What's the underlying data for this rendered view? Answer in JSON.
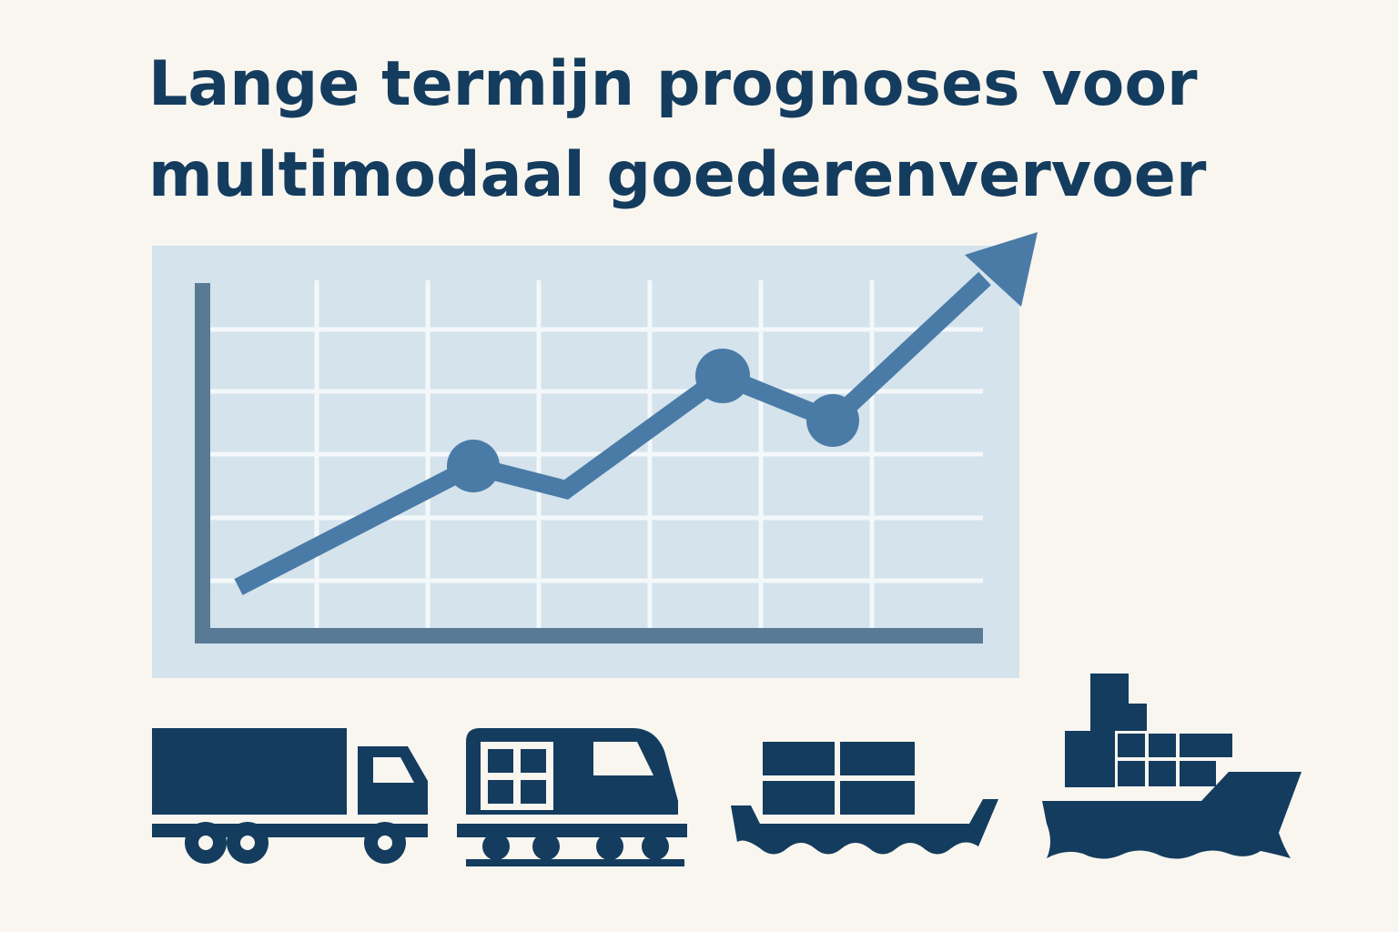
{
  "header": {
    "title": [
      "Lange termijn prognoses voor",
      "multimodaal goederenvervoer"
    ]
  }
}
